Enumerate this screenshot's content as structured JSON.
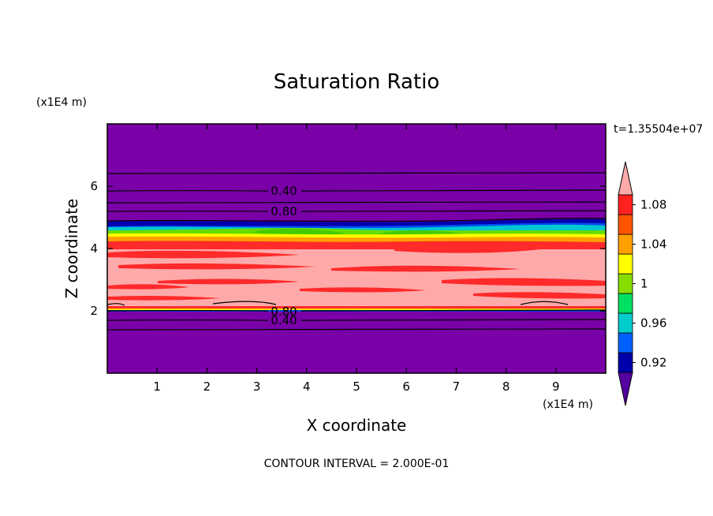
{
  "chart_data": {
    "type": "heatmap",
    "title": "Saturation Ratio",
    "xlabel": "X coordinate",
    "ylabel": "Z coordinate",
    "x_units": "(x1E4 m)",
    "y_units": "(x1E4 m)",
    "time_label": "t=1.35504e+07",
    "footer": "CONTOUR INTERVAL = 2.000E-01",
    "xlim": [
      0,
      10
    ],
    "ylim": [
      0,
      8
    ],
    "x_ticks": [
      "1",
      "2",
      "3",
      "4",
      "5",
      "6",
      "7",
      "8",
      "9"
    ],
    "y_ticks": [
      "2",
      "4",
      "6"
    ],
    "contour_interval": 0.2,
    "contour_labels": [
      "0.40",
      "0.80",
      "0.80",
      "0.40"
    ],
    "colorbar": {
      "labels": [
        "0.92",
        "0.96",
        "1",
        "1.04",
        "1.08"
      ],
      "levels": [
        0.92,
        0.94,
        0.96,
        0.98,
        1.0,
        1.02,
        1.04,
        1.06,
        1.08,
        1.1
      ],
      "colors": [
        "#5500a0",
        "#0000aa",
        "#0060ff",
        "#00cccc",
        "#00e060",
        "#88dd00",
        "#ffff00",
        "#ffa000",
        "#ff5500",
        "#ff2020",
        "#ffaaaa"
      ],
      "extend": "both"
    },
    "bands": [
      {
        "z_from": 4.9,
        "z_to": 8.0,
        "value": "< 0.92"
      },
      {
        "z_from": 4.45,
        "z_to": 4.9,
        "value": "0.92 - 1.04"
      },
      {
        "z_from": 4.0,
        "z_to": 4.45,
        "value": "1.04 - 1.10"
      },
      {
        "z_from": 2.1,
        "z_to": 4.0,
        "value": "> 1.10"
      },
      {
        "z_from": 2.0,
        "z_to": 2.1,
        "value": "0.92 - 1.08"
      },
      {
        "z_from": 0.0,
        "z_to": 2.0,
        "value": "< 0.92"
      }
    ]
  }
}
